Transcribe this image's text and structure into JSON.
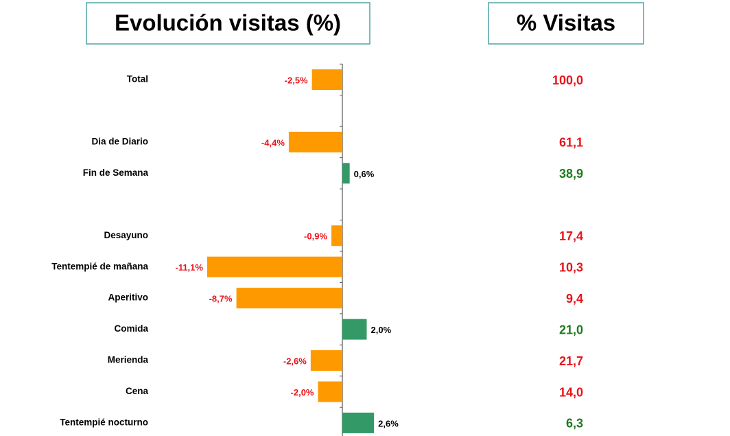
{
  "chart_data": {
    "type": "bar",
    "orientation": "horizontal",
    "title": "Evolución visitas (%)",
    "categories": [
      "Total",
      null,
      "Dia de Diario",
      "Fin de Semana",
      null,
      "Desayuno",
      "Tentempié de mañana",
      "Aperitivo",
      "Comida",
      "Merienda",
      "Cena",
      "Tentempié nocturno"
    ],
    "values": [
      -2.5,
      null,
      -4.4,
      0.6,
      null,
      -0.9,
      -11.1,
      -8.7,
      2.0,
      -2.6,
      -2.0,
      2.6
    ],
    "value_labels": [
      "-2,5%",
      null,
      "-4,4%",
      "0,6%",
      null,
      "-0,9%",
      "-11,1%",
      "-8,7%",
      "2,0%",
      "-2,6%",
      "-2,0%",
      "2,6%"
    ],
    "colors": [
      "#ff9900",
      null,
      "#ff9900",
      "#339966",
      null,
      "#ff9900",
      "#ff9900",
      "#ff9900",
      "#339966",
      "#ff9900",
      "#ff9900",
      "#339966"
    ],
    "label_colors": [
      "#e8141b",
      null,
      "#e8141b",
      "#000000",
      null,
      "#e8141b",
      "#e8141b",
      "#e8141b",
      "#000000",
      "#e8141b",
      "#e8141b",
      "#000000"
    ],
    "share": {
      "title": "% Visitas",
      "values": [
        100.0,
        null,
        61.1,
        38.9,
        null,
        17.4,
        10.3,
        9.4,
        21.0,
        21.7,
        14.0,
        6.3
      ],
      "value_labels": [
        "100,0",
        null,
        "61,1",
        "38,9",
        null,
        "17,4",
        "10,3",
        "9,4",
        "21,0",
        "21,7",
        "14,0",
        "6,3"
      ],
      "colors": [
        "#e8141b",
        null,
        "#e8141b",
        "#1e7a1e",
        null,
        "#e8141b",
        "#e8141b",
        "#e8141b",
        "#1e7a1e",
        "#e8141b",
        "#e8141b",
        "#1e7a1e"
      ]
    }
  }
}
